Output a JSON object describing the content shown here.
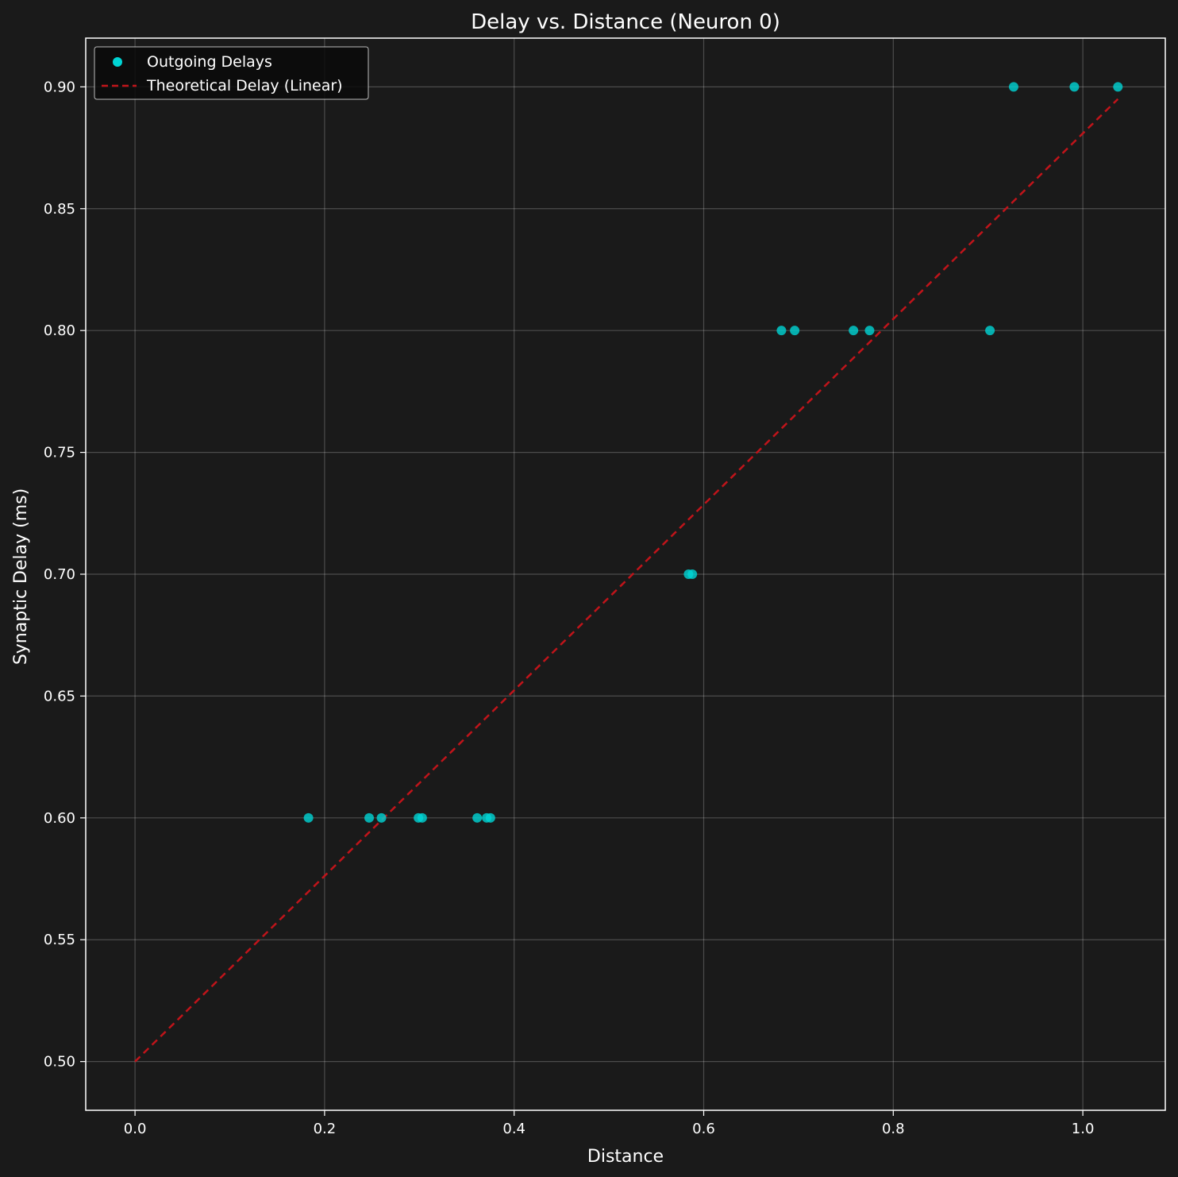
{
  "chart_data": {
    "type": "scatter",
    "title": "Delay vs. Distance (Neuron 0)",
    "xlabel": "Distance",
    "ylabel": "Synaptic Delay (ms)",
    "xlim": [
      -0.052,
      1.087
    ],
    "ylim": [
      0.48,
      0.92
    ],
    "xticks": [
      0.0,
      0.2,
      0.4,
      0.6,
      0.8,
      1.0
    ],
    "xtick_labels": [
      "0.0",
      "0.2",
      "0.4",
      "0.6",
      "0.8",
      "1.0"
    ],
    "yticks": [
      0.5,
      0.55,
      0.6,
      0.65,
      0.7,
      0.75,
      0.8,
      0.85,
      0.9
    ],
    "ytick_labels": [
      "0.50",
      "0.55",
      "0.60",
      "0.65",
      "0.70",
      "0.75",
      "0.80",
      "0.85",
      "0.90"
    ],
    "grid": true,
    "legend_position": "top-left",
    "background_color": "#1a1a1a",
    "series": [
      {
        "name": "Outgoing Delays",
        "kind": "scatter",
        "color": "#00d4d4",
        "points": [
          [
            0.183,
            0.6
          ],
          [
            0.247,
            0.6
          ],
          [
            0.26,
            0.6
          ],
          [
            0.299,
            0.6
          ],
          [
            0.303,
            0.6
          ],
          [
            0.361,
            0.6
          ],
          [
            0.371,
            0.6
          ],
          [
            0.375,
            0.6
          ],
          [
            0.584,
            0.7
          ],
          [
            0.588,
            0.7
          ],
          [
            0.682,
            0.8
          ],
          [
            0.696,
            0.8
          ],
          [
            0.758,
            0.8
          ],
          [
            0.775,
            0.8
          ],
          [
            0.902,
            0.8
          ],
          [
            0.927,
            0.9
          ],
          [
            0.991,
            0.9
          ],
          [
            1.037,
            0.9
          ]
        ]
      },
      {
        "name": "Theoretical Delay (Linear)",
        "kind": "line",
        "style": "dashed",
        "color": "#c0141a",
        "points": [
          [
            0.0,
            0.5
          ],
          [
            1.037,
            0.895
          ]
        ]
      }
    ]
  }
}
